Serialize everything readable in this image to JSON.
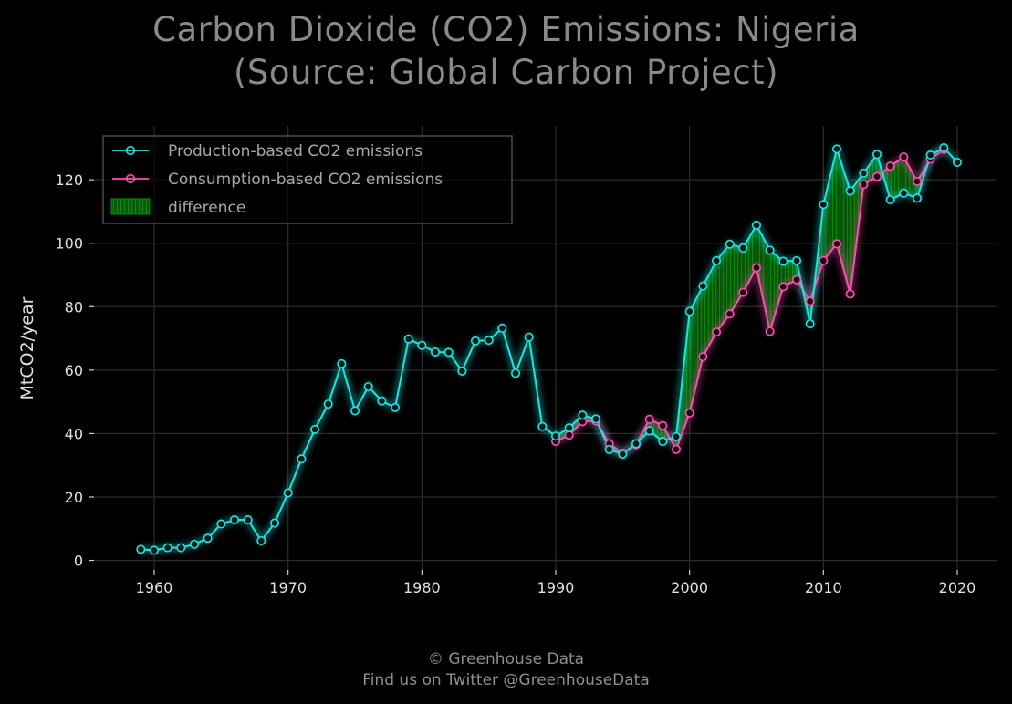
{
  "title_line1": "Carbon Dioxide (CO2) Emissions: Nigeria",
  "title_line2": "(Source: Global Carbon Project)",
  "footer_line1": "© Greenhouse Data",
  "footer_line2": "Find us on Twitter @GreenhouseData",
  "colors": {
    "background": "#000000",
    "production": "#1ee6df",
    "consumption": "#ff4fb0",
    "difference": "#0a6e0a",
    "grid": "#2a2a2a",
    "text": "#e0e0e0"
  },
  "chart_data": {
    "type": "line",
    "title": "Carbon Dioxide (CO2) Emissions: Nigeria (Source: Global Carbon Project)",
    "xlabel": "",
    "ylabel": "MtCO2/year",
    "xlim": [
      1955.5,
      2023
    ],
    "ylim": [
      -3,
      137
    ],
    "xticks": [
      1960,
      1970,
      1980,
      1990,
      2000,
      2010,
      2020
    ],
    "yticks": [
      0,
      20,
      40,
      60,
      80,
      100,
      120
    ],
    "grid": true,
    "legend_position": "top-left",
    "legend": [
      "Production-based CO2 emissions",
      "Consumption-based CO2 emissions",
      "difference"
    ],
    "series": [
      {
        "name": "Production-based CO2 emissions",
        "x": [
          1959,
          1960,
          1961,
          1962,
          1963,
          1964,
          1965,
          1966,
          1967,
          1968,
          1969,
          1970,
          1971,
          1972,
          1973,
          1974,
          1975,
          1976,
          1977,
          1978,
          1979,
          1980,
          1981,
          1982,
          1983,
          1984,
          1985,
          1986,
          1987,
          1988,
          1989,
          1990,
          1991,
          1992,
          1993,
          1994,
          1995,
          1996,
          1997,
          1998,
          1999,
          2000,
          2001,
          2002,
          2003,
          2004,
          2005,
          2006,
          2007,
          2008,
          2009,
          2010,
          2011,
          2012,
          2013,
          2014,
          2015,
          2016,
          2017,
          2018,
          2019,
          2020
        ],
        "values": [
          3.5,
          3.2,
          4.0,
          4.0,
          5.1,
          7.0,
          11.5,
          12.8,
          12.8,
          6.2,
          11.8,
          21.3,
          32.0,
          41.3,
          49.3,
          62.0,
          47.2,
          54.8,
          50.3,
          48.2,
          69.8,
          67.8,
          65.7,
          65.6,
          59.7,
          69.2,
          69.4,
          73.2,
          59.0,
          70.4,
          42.2,
          39.2,
          41.8,
          45.8,
          44.6,
          35.0,
          33.5,
          36.8,
          40.9,
          37.5,
          39.0,
          78.5,
          86.5,
          94.5,
          99.7,
          98.5,
          105.7,
          97.8,
          94.3,
          94.5,
          74.6,
          112.2,
          129.7,
          116.5,
          122.1,
          128.0,
          113.7,
          115.8,
          114.2,
          127.8,
          130.1,
          125.5
        ]
      },
      {
        "name": "Consumption-based CO2 emissions",
        "x": [
          1990,
          1991,
          1992,
          1993,
          1994,
          1995,
          1996,
          1997,
          1998,
          1999,
          2000,
          2001,
          2002,
          2003,
          2004,
          2005,
          2006,
          2007,
          2008,
          2009,
          2010,
          2011,
          2012,
          2013,
          2014,
          2015,
          2016,
          2017,
          2018,
          2019
        ],
        "values": [
          37.5,
          39.5,
          43.8,
          44.0,
          36.8,
          33.8,
          36.5,
          44.5,
          42.5,
          35.0,
          46.5,
          64.2,
          72.0,
          77.7,
          84.5,
          92.3,
          72.2,
          86.3,
          88.5,
          81.7,
          94.5,
          99.8,
          84.0,
          118.5,
          121.0,
          124.3,
          127.2,
          119.5,
          126.5,
          129.6
        ]
      }
    ]
  }
}
